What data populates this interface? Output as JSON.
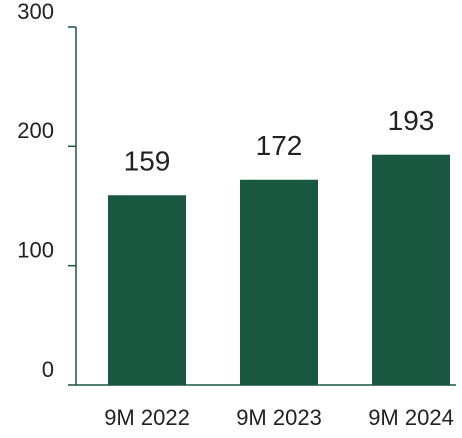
{
  "chart_data": {
    "type": "bar",
    "categories": [
      "9M 2022",
      "9M 2023",
      "9M 2024"
    ],
    "values": [
      159,
      172,
      193
    ],
    "color": "#1a5741",
    "ylim": [
      0,
      300
    ],
    "yticks": [
      0,
      100,
      200,
      300
    ],
    "grid": false
  }
}
